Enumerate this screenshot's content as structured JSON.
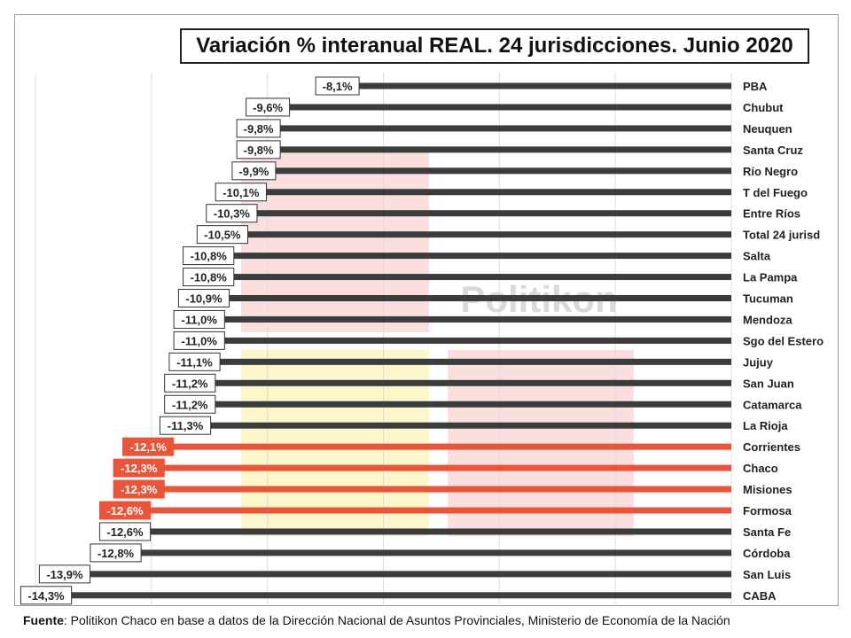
{
  "chart_data": {
    "type": "bar",
    "orientation": "horizontal",
    "title": "Variación % interanual REAL. 24 jurisdicciones. Junio 2020",
    "categories": [
      "PBA",
      "Chubut",
      "Neuquen",
      "Santa Cruz",
      "Río Negro",
      "T del Fuego",
      "Entre Ríos",
      "Total 24 jurisd",
      "Salta",
      "La Pampa",
      "Tucuman",
      "Mendoza",
      "Sgo del Estero",
      "Jujuy",
      "San Juan",
      "Catamarca",
      "La Rioja",
      "Corrientes",
      "Chaco",
      "Misiones",
      "Formosa",
      "Santa Fe",
      "Córdoba",
      "San Luis",
      "CABA"
    ],
    "values": [
      -8.1,
      -9.6,
      -9.8,
      -9.8,
      -9.9,
      -10.1,
      -10.3,
      -10.5,
      -10.8,
      -10.8,
      -10.9,
      -11.0,
      -11.0,
      -11.1,
      -11.2,
      -11.2,
      -11.3,
      -12.1,
      -12.3,
      -12.3,
      -12.6,
      -12.6,
      -12.8,
      -13.9,
      -14.3
    ],
    "labels": [
      "-8,1%",
      "-9,6%",
      "-9,8%",
      "-9,8%",
      "-9,9%",
      "-10,1%",
      "-10,3%",
      "-10,5%",
      "-10,8%",
      "-10,8%",
      "-10,9%",
      "-11,0%",
      "-11,0%",
      "-11,1%",
      "-11,2%",
      "-11,2%",
      "-11,3%",
      "-12,1%",
      "-12,3%",
      "-12,3%",
      "-12,6%",
      "-12,6%",
      "-12,8%",
      "-13,9%",
      "-14,3%"
    ],
    "highlighted": [
      "Corrientes",
      "Chaco",
      "Misiones",
      "Formosa"
    ],
    "colors": {
      "default": "#3c3c3c",
      "highlight": "#e8553a",
      "label_highlight_bg": "#e8553a",
      "label_bg": "#ffffff"
    },
    "xlim": [
      -15,
      0
    ],
    "grid": true,
    "watermark": "Politikon"
  },
  "footer": {
    "bold": "Fuente",
    "text": ": Politikon Chaco en base a datos de la Dirección Nacional de Asuntos Provinciales, Ministerio de Economía de la Nación"
  }
}
